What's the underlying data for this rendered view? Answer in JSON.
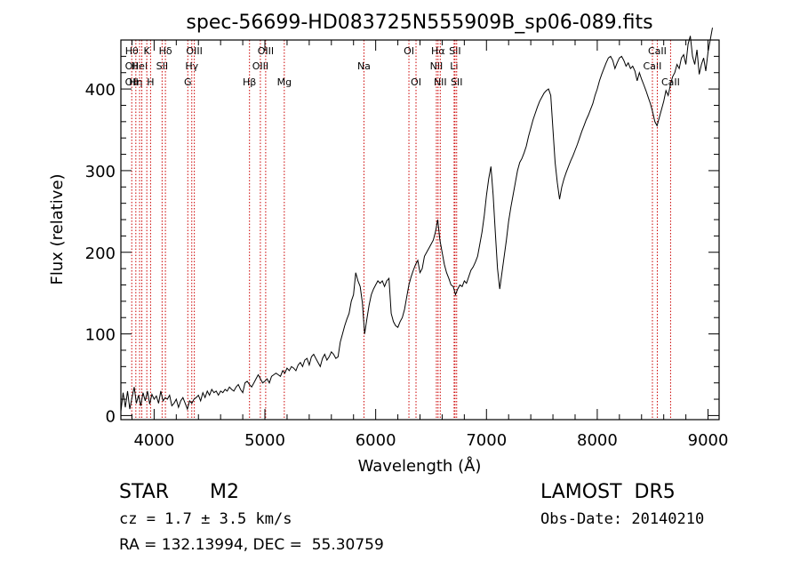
{
  "chart_data": {
    "type": "line",
    "title": "spec-56699-HD083725N555909B_sp06-089.fits",
    "xlabel": "Wavelength (Å)",
    "ylabel": "Flux (relative)",
    "xlim": [
      3700,
      9100
    ],
    "ylim": [
      -5,
      460
    ],
    "xticks": [
      4000,
      5000,
      6000,
      7000,
      8000,
      9000
    ],
    "yticks": [
      0,
      100,
      200,
      300,
      400
    ],
    "grid": false,
    "line_color": "#000000",
    "marker_color": "#cc0000",
    "series": [
      {
        "points": [
          [
            3700,
            5
          ],
          [
            3720,
            28
          ],
          [
            3740,
            10
          ],
          [
            3760,
            30
          ],
          [
            3780,
            8
          ],
          [
            3800,
            22
          ],
          [
            3820,
            35
          ],
          [
            3840,
            15
          ],
          [
            3860,
            25
          ],
          [
            3880,
            12
          ],
          [
            3900,
            28
          ],
          [
            3920,
            18
          ],
          [
            3940,
            30
          ],
          [
            3960,
            14
          ],
          [
            3980,
            26
          ],
          [
            4000,
            20
          ],
          [
            4020,
            24
          ],
          [
            4040,
            15
          ],
          [
            4060,
            30
          ],
          [
            4080,
            18
          ],
          [
            4100,
            22
          ],
          [
            4120,
            20
          ],
          [
            4140,
            25
          ],
          [
            4160,
            12
          ],
          [
            4180,
            15
          ],
          [
            4200,
            20
          ],
          [
            4220,
            10
          ],
          [
            4240,
            18
          ],
          [
            4260,
            22
          ],
          [
            4280,
            15
          ],
          [
            4300,
            8
          ],
          [
            4320,
            18
          ],
          [
            4340,
            15
          ],
          [
            4360,
            20
          ],
          [
            4380,
            22
          ],
          [
            4400,
            25
          ],
          [
            4420,
            18
          ],
          [
            4440,
            28
          ],
          [
            4460,
            22
          ],
          [
            4480,
            30
          ],
          [
            4500,
            25
          ],
          [
            4520,
            32
          ],
          [
            4540,
            28
          ],
          [
            4560,
            30
          ],
          [
            4580,
            25
          ],
          [
            4600,
            30
          ],
          [
            4620,
            28
          ],
          [
            4640,
            32
          ],
          [
            4660,
            30
          ],
          [
            4680,
            35
          ],
          [
            4700,
            32
          ],
          [
            4720,
            30
          ],
          [
            4740,
            35
          ],
          [
            4760,
            38
          ],
          [
            4780,
            32
          ],
          [
            4800,
            28
          ],
          [
            4820,
            40
          ],
          [
            4840,
            42
          ],
          [
            4860,
            38
          ],
          [
            4880,
            35
          ],
          [
            4900,
            40
          ],
          [
            4920,
            45
          ],
          [
            4940,
            50
          ],
          [
            4960,
            45
          ],
          [
            4980,
            40
          ],
          [
            5000,
            42
          ],
          [
            5020,
            45
          ],
          [
            5040,
            40
          ],
          [
            5060,
            48
          ],
          [
            5080,
            50
          ],
          [
            5100,
            52
          ],
          [
            5120,
            50
          ],
          [
            5140,
            48
          ],
          [
            5160,
            55
          ],
          [
            5180,
            52
          ],
          [
            5200,
            58
          ],
          [
            5220,
            55
          ],
          [
            5240,
            60
          ],
          [
            5260,
            58
          ],
          [
            5280,
            55
          ],
          [
            5300,
            62
          ],
          [
            5320,
            65
          ],
          [
            5340,
            60
          ],
          [
            5360,
            68
          ],
          [
            5380,
            70
          ],
          [
            5400,
            62
          ],
          [
            5420,
            72
          ],
          [
            5440,
            75
          ],
          [
            5460,
            70
          ],
          [
            5480,
            65
          ],
          [
            5500,
            60
          ],
          [
            5520,
            70
          ],
          [
            5540,
            75
          ],
          [
            5560,
            68
          ],
          [
            5580,
            72
          ],
          [
            5600,
            78
          ],
          [
            5620,
            75
          ],
          [
            5640,
            70
          ],
          [
            5660,
            72
          ],
          [
            5680,
            90
          ],
          [
            5700,
            100
          ],
          [
            5720,
            110
          ],
          [
            5740,
            118
          ],
          [
            5760,
            125
          ],
          [
            5780,
            140
          ],
          [
            5800,
            148
          ],
          [
            5820,
            175
          ],
          [
            5840,
            165
          ],
          [
            5860,
            158
          ],
          [
            5880,
            138
          ],
          [
            5900,
            100
          ],
          [
            5920,
            118
          ],
          [
            5940,
            135
          ],
          [
            5960,
            148
          ],
          [
            5980,
            155
          ],
          [
            6000,
            160
          ],
          [
            6020,
            165
          ],
          [
            6040,
            162
          ],
          [
            6060,
            165
          ],
          [
            6080,
            158
          ],
          [
            6100,
            165
          ],
          [
            6120,
            168
          ],
          [
            6140,
            125
          ],
          [
            6160,
            115
          ],
          [
            6180,
            110
          ],
          [
            6200,
            108
          ],
          [
            6220,
            115
          ],
          [
            6240,
            120
          ],
          [
            6260,
            130
          ],
          [
            6280,
            145
          ],
          [
            6300,
            160
          ],
          [
            6320,
            170
          ],
          [
            6340,
            178
          ],
          [
            6360,
            185
          ],
          [
            6380,
            190
          ],
          [
            6400,
            175
          ],
          [
            6420,
            180
          ],
          [
            6440,
            195
          ],
          [
            6460,
            200
          ],
          [
            6480,
            205
          ],
          [
            6500,
            210
          ],
          [
            6520,
            215
          ],
          [
            6540,
            225
          ],
          [
            6560,
            240
          ],
          [
            6580,
            215
          ],
          [
            6600,
            200
          ],
          [
            6620,
            185
          ],
          [
            6640,
            175
          ],
          [
            6660,
            168
          ],
          [
            6680,
            160
          ],
          [
            6700,
            158
          ],
          [
            6720,
            148
          ],
          [
            6740,
            155
          ],
          [
            6760,
            160
          ],
          [
            6780,
            158
          ],
          [
            6800,
            165
          ],
          [
            6820,
            162
          ],
          [
            6840,
            170
          ],
          [
            6860,
            178
          ],
          [
            6880,
            182
          ],
          [
            6900,
            188
          ],
          [
            6920,
            195
          ],
          [
            6940,
            210
          ],
          [
            6960,
            225
          ],
          [
            6980,
            245
          ],
          [
            7000,
            270
          ],
          [
            7020,
            290
          ],
          [
            7040,
            305
          ],
          [
            7060,
            270
          ],
          [
            7080,
            225
          ],
          [
            7100,
            180
          ],
          [
            7120,
            155
          ],
          [
            7140,
            175
          ],
          [
            7160,
            195
          ],
          [
            7180,
            215
          ],
          [
            7200,
            238
          ],
          [
            7220,
            255
          ],
          [
            7240,
            270
          ],
          [
            7260,
            285
          ],
          [
            7280,
            300
          ],
          [
            7300,
            310
          ],
          [
            7320,
            315
          ],
          [
            7340,
            322
          ],
          [
            7360,
            330
          ],
          [
            7380,
            342
          ],
          [
            7400,
            352
          ],
          [
            7420,
            362
          ],
          [
            7440,
            370
          ],
          [
            7460,
            378
          ],
          [
            7480,
            385
          ],
          [
            7500,
            390
          ],
          [
            7520,
            395
          ],
          [
            7540,
            398
          ],
          [
            7560,
            400
          ],
          [
            7580,
            392
          ],
          [
            7600,
            350
          ],
          [
            7620,
            310
          ],
          [
            7640,
            285
          ],
          [
            7660,
            265
          ],
          [
            7680,
            280
          ],
          [
            7700,
            290
          ],
          [
            7720,
            298
          ],
          [
            7740,
            305
          ],
          [
            7760,
            312
          ],
          [
            7780,
            318
          ],
          [
            7800,
            325
          ],
          [
            7820,
            332
          ],
          [
            7840,
            340
          ],
          [
            7860,
            348
          ],
          [
            7880,
            355
          ],
          [
            7900,
            362
          ],
          [
            7920,
            368
          ],
          [
            7940,
            375
          ],
          [
            7960,
            382
          ],
          [
            7980,
            392
          ],
          [
            8000,
            400
          ],
          [
            8020,
            410
          ],
          [
            8040,
            418
          ],
          [
            8060,
            425
          ],
          [
            8080,
            432
          ],
          [
            8100,
            438
          ],
          [
            8120,
            440
          ],
          [
            8140,
            435
          ],
          [
            8160,
            425
          ],
          [
            8180,
            432
          ],
          [
            8200,
            438
          ],
          [
            8220,
            440
          ],
          [
            8240,
            435
          ],
          [
            8260,
            428
          ],
          [
            8280,
            432
          ],
          [
            8300,
            425
          ],
          [
            8320,
            428
          ],
          [
            8340,
            422
          ],
          [
            8360,
            410
          ],
          [
            8380,
            420
          ],
          [
            8400,
            412
          ],
          [
            8420,
            405
          ],
          [
            8440,
            398
          ],
          [
            8460,
            390
          ],
          [
            8480,
            382
          ],
          [
            8500,
            372
          ],
          [
            8520,
            360
          ],
          [
            8540,
            355
          ],
          [
            8560,
            365
          ],
          [
            8580,
            375
          ],
          [
            8600,
            385
          ],
          [
            8620,
            398
          ],
          [
            8640,
            392
          ],
          [
            8660,
            405
          ],
          [
            8680,
            415
          ],
          [
            8700,
            420
          ],
          [
            8720,
            430
          ],
          [
            8740,
            425
          ],
          [
            8760,
            438
          ],
          [
            8780,
            442
          ],
          [
            8800,
            430
          ],
          [
            8820,
            455
          ],
          [
            8840,
            465
          ],
          [
            8860,
            440
          ],
          [
            8880,
            430
          ],
          [
            8900,
            448
          ],
          [
            8920,
            418
          ],
          [
            8940,
            430
          ],
          [
            8960,
            438
          ],
          [
            8980,
            422
          ],
          [
            9000,
            445
          ],
          [
            9020,
            460
          ],
          [
            9040,
            475
          ]
        ]
      }
    ],
    "lines": [
      {
        "x": 3798,
        "labels": [
          "Hθ",
          "OII",
          "OII"
        ]
      },
      {
        "x": 3835,
        "labels": [
          "",
          "",
          "Hη"
        ]
      },
      {
        "x": 3869,
        "labels": [
          "",
          "HeI",
          ""
        ]
      },
      {
        "x": 3889,
        "labels": [
          "",
          "",
          ""
        ]
      },
      {
        "x": 3934,
        "labels": [
          "K",
          "",
          ""
        ]
      },
      {
        "x": 3968,
        "labels": [
          "",
          "",
          "H"
        ]
      },
      {
        "x": 4072,
        "labels": [
          "",
          "SII",
          ""
        ]
      },
      {
        "x": 4102,
        "labels": [
          "Hδ",
          "",
          ""
        ]
      },
      {
        "x": 4304,
        "labels": [
          "",
          "",
          "G"
        ]
      },
      {
        "x": 4340,
        "labels": [
          "",
          "Hγ",
          ""
        ]
      },
      {
        "x": 4363,
        "labels": [
          "OIII",
          "",
          ""
        ]
      },
      {
        "x": 4861,
        "labels": [
          "",
          "",
          "Hβ"
        ]
      },
      {
        "x": 4959,
        "labels": [
          "",
          "OIII",
          ""
        ]
      },
      {
        "x": 5007,
        "labels": [
          "OIII",
          "",
          ""
        ]
      },
      {
        "x": 5175,
        "labels": [
          "",
          "",
          "Mg"
        ]
      },
      {
        "x": 5894,
        "labels": [
          "",
          "Na",
          ""
        ]
      },
      {
        "x": 6300,
        "labels": [
          "OI",
          "",
          ""
        ]
      },
      {
        "x": 6364,
        "labels": [
          "",
          "",
          "OI"
        ]
      },
      {
        "x": 6548,
        "labels": [
          "",
          "NII",
          ""
        ]
      },
      {
        "x": 6563,
        "labels": [
          "Hα",
          "",
          ""
        ]
      },
      {
        "x": 6583,
        "labels": [
          "",
          "",
          "NII"
        ]
      },
      {
        "x": 6708,
        "labels": [
          "",
          "Li",
          ""
        ]
      },
      {
        "x": 6716,
        "labels": [
          "SII",
          "",
          ""
        ]
      },
      {
        "x": 6731,
        "labels": [
          "",
          "",
          "SII"
        ]
      },
      {
        "x": 8498,
        "labels": [
          "",
          "CaII",
          ""
        ]
      },
      {
        "x": 8542,
        "labels": [
          "CaII",
          "",
          ""
        ]
      },
      {
        "x": 8662,
        "labels": [
          "",
          "",
          "CaII"
        ]
      }
    ]
  },
  "info": {
    "obj_class": "STAR",
    "subclass": "M2",
    "survey": "LAMOST  DR5",
    "cz": "cz = 1.7 ± 3.5 km/s",
    "obs_date": "Obs-Date: 20140210",
    "radec": "RA = 132.13994, DEC =  55.30759"
  }
}
